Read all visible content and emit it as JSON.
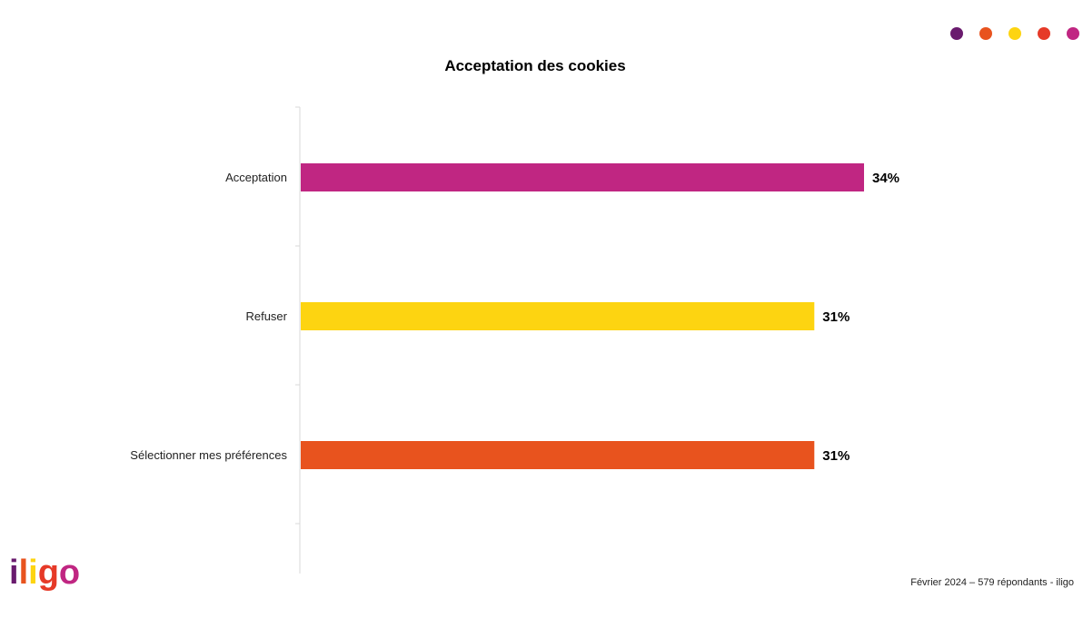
{
  "header": {
    "dot_colors": [
      "#6a1b6e",
      "#e8531e",
      "#fdd411",
      "#e63a28",
      "#c02682"
    ]
  },
  "logo": {
    "text": "iligo"
  },
  "footer": {
    "source": "Février 2024 – 579 répondants - iligo"
  },
  "chart_data": {
    "type": "bar",
    "orientation": "horizontal",
    "title": "Acceptation des cookies",
    "categories": [
      "Acceptation",
      "Refuser",
      "Sélectionner mes préférences"
    ],
    "values": [
      34,
      31,
      31
    ],
    "value_labels": [
      "34%",
      "31%",
      "31%"
    ],
    "colors": [
      "#c02682",
      "#fdd411",
      "#e8531e"
    ],
    "xlim": [
      0,
      34
    ],
    "unit": "%",
    "grid": false,
    "legend": "none"
  }
}
